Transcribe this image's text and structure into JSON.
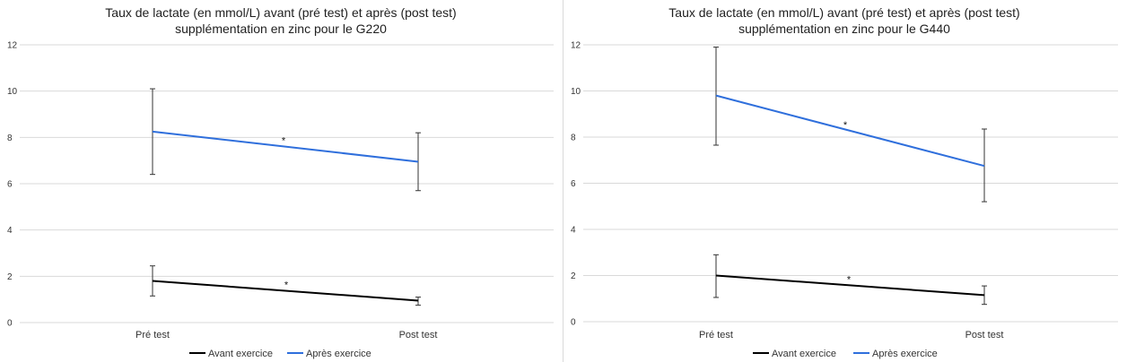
{
  "chart_data": [
    {
      "type": "line",
      "title_line1": "Taux de lactate (en mmol/L) avant (pré test) et après (post test)",
      "title_line2": "supplémentation en zinc pour le G220",
      "categories": [
        "Pré test",
        "Post test"
      ],
      "ylim": [
        0,
        12
      ],
      "yticks": [
        0,
        2,
        4,
        6,
        8,
        10,
        12
      ],
      "grid": true,
      "legend_position": "bottom",
      "series": [
        {
          "name": "Avant exercice",
          "color": "#000000",
          "values": [
            1.8,
            0.95
          ],
          "error_low": [
            1.15,
            0.75
          ],
          "error_high": [
            2.45,
            1.1
          ]
        },
        {
          "name": "Après exercice",
          "color": "#2f6fdc",
          "values": [
            8.25,
            6.95
          ],
          "error_low": [
            6.4,
            5.7
          ],
          "error_high": [
            10.1,
            8.2
          ]
        }
      ],
      "annotations": [
        {
          "text": "*",
          "series": 0
        },
        {
          "text": "*",
          "series": 1
        }
      ]
    },
    {
      "type": "line",
      "title_line1": "Taux de lactate (en mmol/L) avant (pré test) et après (post test)",
      "title_line2": "supplémentation en zinc pour le G440",
      "categories": [
        "Pré test",
        "Post test"
      ],
      "ylim": [
        0,
        12
      ],
      "yticks": [
        0,
        2,
        4,
        6,
        8,
        10,
        12
      ],
      "grid": true,
      "legend_position": "bottom",
      "series": [
        {
          "name": "Avant exercice",
          "color": "#000000",
          "values": [
            2.0,
            1.15
          ],
          "error_low": [
            1.05,
            0.75
          ],
          "error_high": [
            2.9,
            1.55
          ]
        },
        {
          "name": "Après exercice",
          "color": "#2f6fdc",
          "values": [
            9.8,
            6.75
          ],
          "error_low": [
            7.65,
            5.2
          ],
          "error_high": [
            11.9,
            8.35
          ]
        }
      ],
      "annotations": [
        {
          "text": "*",
          "series": 0
        },
        {
          "text": "*",
          "series": 1
        }
      ]
    }
  ]
}
